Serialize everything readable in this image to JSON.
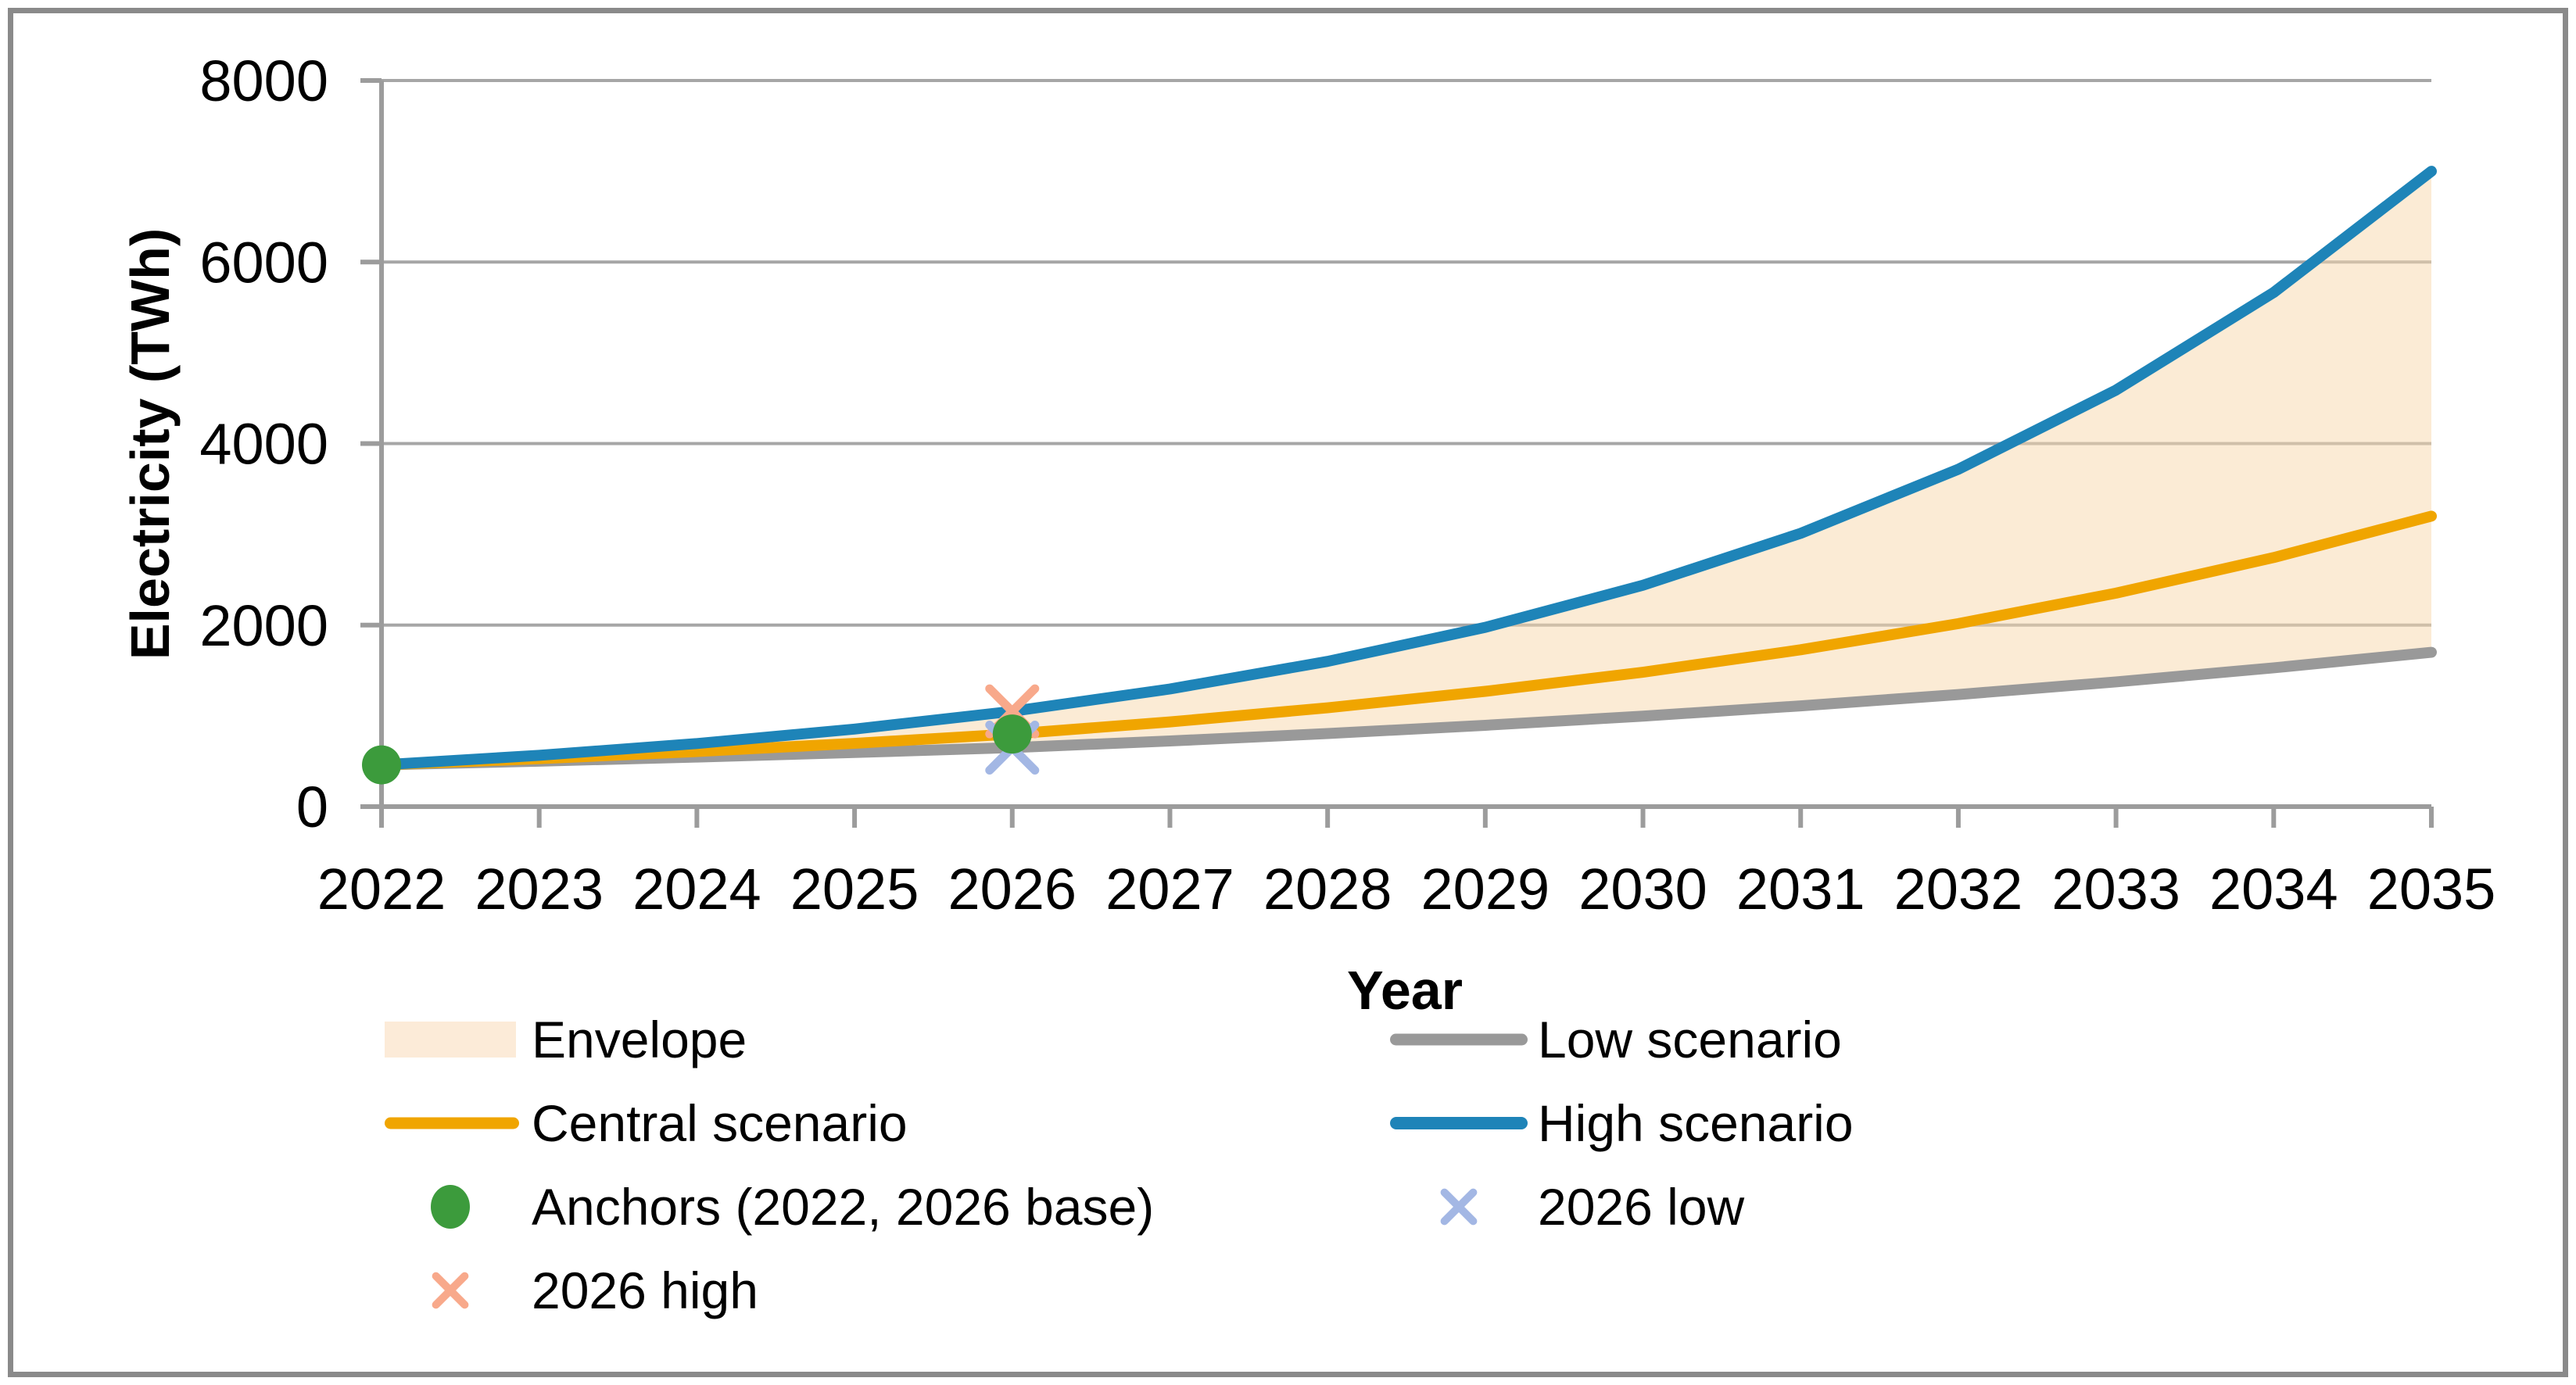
{
  "figure": {
    "border_color": "#8A8A8A",
    "background": "#FFFFFF"
  },
  "colors": {
    "envelope_fill": "#F8D8AC",
    "envelope_legend": "#FCEBD8",
    "low": "#999999",
    "central": "#F0A500",
    "high": "#1E84B8",
    "anchors": "#3C9B3C",
    "x_low": "#A3B7E4",
    "x_high": "#F8A98B",
    "grid": "#A6A6A6",
    "axis": "#9C9C9C",
    "text": "#000000"
  },
  "axes": {
    "x_title": "Year",
    "y_title": "Electricity (TWh)"
  },
  "chart_data": {
    "type": "line",
    "title": "",
    "xlabel": "Year",
    "ylabel": "Electricity (TWh)",
    "x": [
      2022,
      2023,
      2024,
      2025,
      2026,
      2027,
      2028,
      2029,
      2030,
      2031,
      2032,
      2033,
      2034,
      2035
    ],
    "xlim": [
      2022,
      2035
    ],
    "ylim": [
      0,
      8000
    ],
    "yticks": [
      0,
      2000,
      4000,
      6000,
      8000
    ],
    "grid": true,
    "legend_position": "bottom-two-columns",
    "series": [
      {
        "name": "Low scenario",
        "color_key": "low",
        "values": [
          460,
          501,
          546,
          596,
          650,
          723,
          805,
          896,
          997,
          1110,
          1235,
          1374,
          1529,
          1700
        ]
      },
      {
        "name": "Central scenario",
        "color_key": "central",
        "values": [
          460,
          528,
          607,
          697,
          800,
          933,
          1089,
          1270,
          1481,
          1728,
          2016,
          2352,
          2744,
          3200
        ]
      },
      {
        "name": "High scenario",
        "color_key": "high",
        "values": [
          460,
          565,
          695,
          854,
          1050,
          1296,
          1600,
          1975,
          2439,
          3011,
          3717,
          4589,
          5665,
          7000
        ]
      }
    ],
    "envelope": {
      "name": "Envelope",
      "between": [
        "Low scenario",
        "High scenario"
      ],
      "fill_key": "envelope_fill",
      "opacity": 0.5
    },
    "markers": [
      {
        "name": "2026 high",
        "shape": "x",
        "color_key": "x_high",
        "points": [
          {
            "x": 2026,
            "y": 1050
          }
        ]
      },
      {
        "name": "2026 low",
        "shape": "x",
        "color_key": "x_low",
        "points": [
          {
            "x": 2026,
            "y": 650
          }
        ]
      },
      {
        "name": "Anchors (2022, 2026 base)",
        "shape": "circle",
        "color_key": "anchors",
        "points": [
          {
            "x": 2022,
            "y": 460
          },
          {
            "x": 2026,
            "y": 800
          }
        ]
      }
    ]
  },
  "legend": {
    "left": [
      {
        "label": "Envelope"
      },
      {
        "label": "Central scenario"
      },
      {
        "label": "Anchors (2022, 2026 base)"
      },
      {
        "label": "2026 high"
      }
    ],
    "right": [
      {
        "label": "Low scenario"
      },
      {
        "label": "High scenario"
      },
      {
        "label": "2026 low"
      }
    ]
  }
}
